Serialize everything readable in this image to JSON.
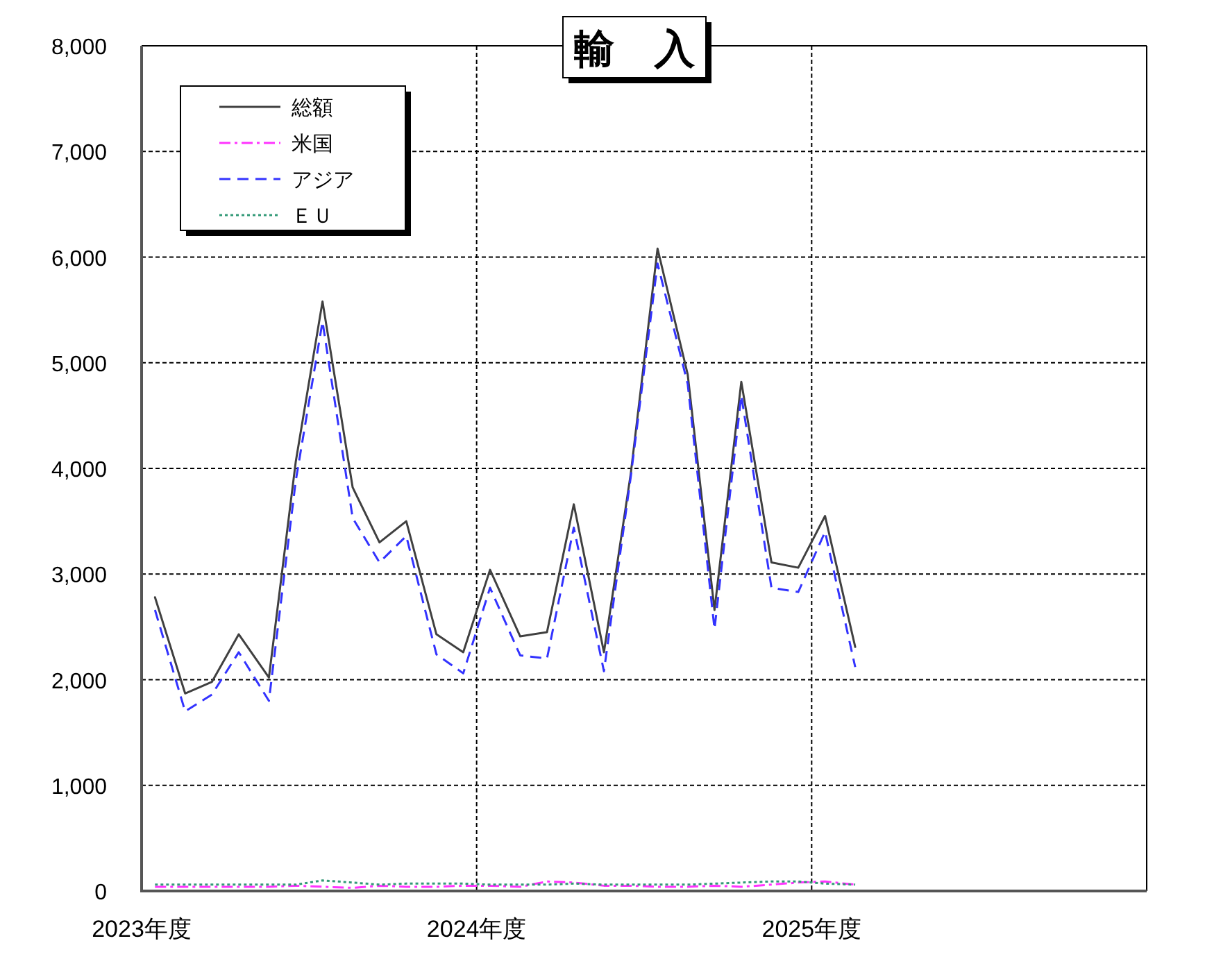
{
  "chart_data": {
    "type": "line",
    "title": "輸　入",
    "x": [
      2023.04,
      2023.13,
      2023.21,
      2023.29,
      2023.38,
      2023.46,
      2023.54,
      2023.63,
      2023.71,
      2023.79,
      2023.88,
      2023.96,
      2024.04,
      2024.13,
      2024.21,
      2024.29,
      2024.38,
      2024.46,
      2024.54,
      2024.63,
      2024.71,
      2024.79,
      2024.88,
      2024.96,
      2025.04,
      2025.13
    ],
    "xlim": [
      2023,
      2026
    ],
    "xticks": [
      {
        "value": 2023,
        "label": "2023年度"
      },
      {
        "value": 2024,
        "label": "2024年度"
      },
      {
        "value": 2025,
        "label": "2025年度"
      }
    ],
    "ylim": [
      0,
      8000
    ],
    "yticks": [
      0,
      {
        "value": 1000,
        "label": "1,000"
      },
      {
        "value": 2000,
        "label": "2,000"
      },
      {
        "value": 3000,
        "label": "3,000"
      },
      {
        "value": 4000,
        "label": "4,000"
      },
      {
        "value": 5000,
        "label": "5,000"
      },
      {
        "value": 6000,
        "label": "6,000"
      },
      {
        "value": 7000,
        "label": "7,000"
      },
      {
        "value": 8000,
        "label": "8,000"
      }
    ],
    "grid": true,
    "legend": "top left",
    "series": [
      {
        "name": "総額",
        "color": "#404040",
        "line_style": "solid",
        "values": [
          2780,
          1870,
          1980,
          2430,
          2020,
          4060,
          5580,
          3820,
          3300,
          3500,
          2430,
          2260,
          3040,
          2410,
          2450,
          3660,
          2260,
          3950,
          6080,
          4890,
          2660,
          4820,
          3110,
          3060,
          3550,
          2310
        ]
      },
      {
        "name": "米国",
        "color": "#ff33ff",
        "line_style": "dashdot",
        "values": [
          40,
          40,
          40,
          40,
          40,
          50,
          40,
          30,
          50,
          40,
          40,
          50,
          50,
          40,
          90,
          80,
          50,
          50,
          40,
          40,
          50,
          40,
          60,
          80,
          90,
          60
        ]
      },
      {
        "name": "アジア",
        "color": "#3333ff",
        "line_style": "dashed",
        "values": [
          2660,
          1700,
          1860,
          2260,
          1800,
          3880,
          5390,
          3530,
          3110,
          3360,
          2240,
          2060,
          2870,
          2230,
          2200,
          3440,
          2080,
          3920,
          5940,
          4800,
          2480,
          4690,
          2870,
          2830,
          3400,
          2120
        ]
      },
      {
        "name": "ＥＵ",
        "color": "#339977",
        "line_style": "dotted",
        "values": [
          60,
          60,
          60,
          60,
          60,
          60,
          100,
          80,
          60,
          70,
          70,
          70,
          60,
          60,
          60,
          70,
          60,
          60,
          60,
          60,
          70,
          80,
          90,
          90,
          70,
          60
        ]
      }
    ]
  }
}
